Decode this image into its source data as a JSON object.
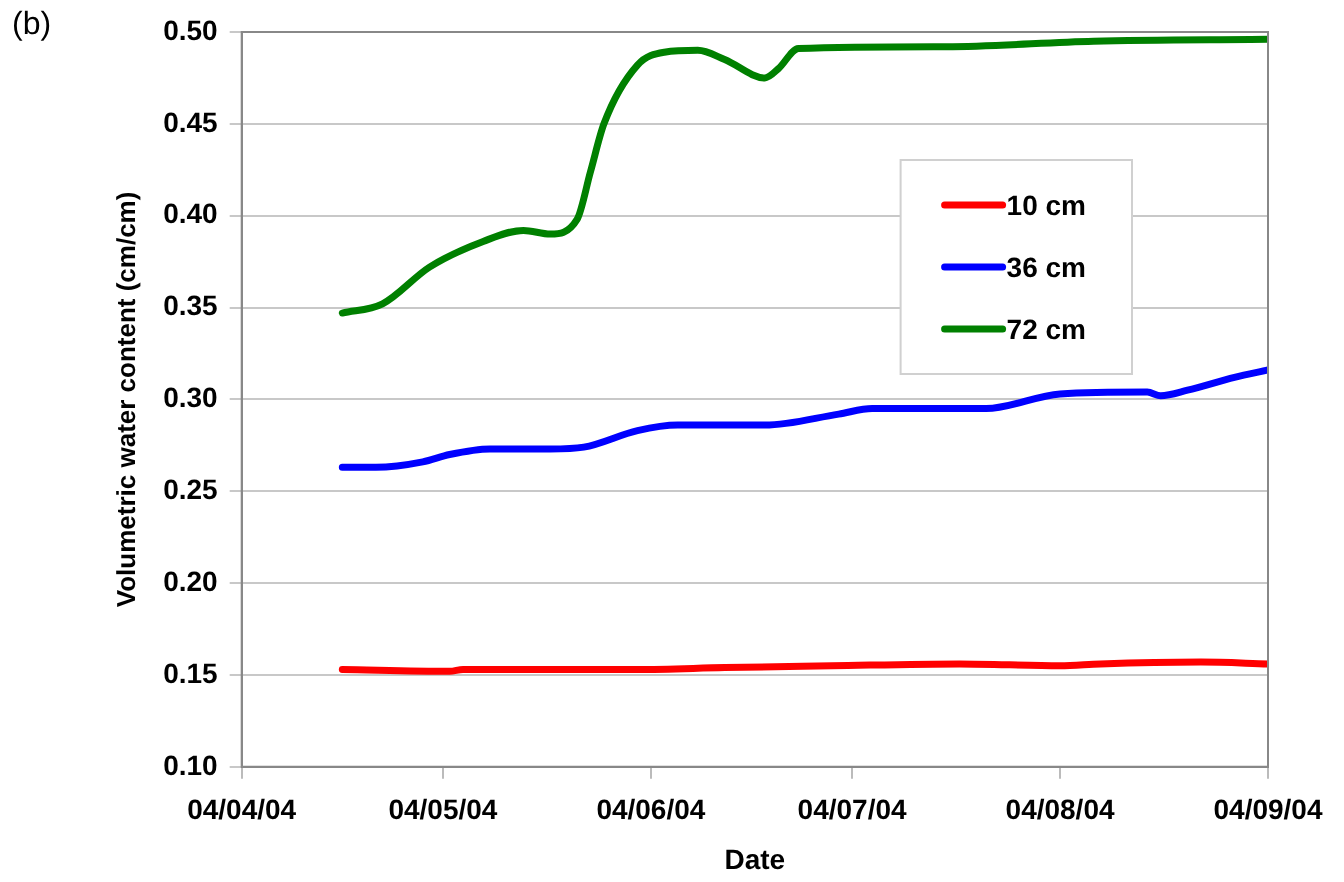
{
  "chart_data": {
    "type": "line",
    "xlabel": "Date",
    "ylabel": "Volumetric water content (cm/cm)",
    "annotations": [
      "(b)"
    ],
    "xlim": [
      "--04-04",
      "--09-04"
    ],
    "xticks": [
      {
        "value": "--04-04",
        "label": "04/04/04"
      },
      {
        "value": "--05-04",
        "label": "04/05/04"
      },
      {
        "value": "--06-04",
        "label": "04/06/04"
      },
      {
        "value": "--07-04",
        "label": "04/07/04"
      },
      {
        "value": "--08-04",
        "label": "04/08/04"
      },
      {
        "value": "--09-04",
        "label": "04/09/04"
      }
    ],
    "ylim": [
      0.1,
      0.5
    ],
    "yticks": [
      {
        "value": 0.1,
        "label": "0.10"
      },
      {
        "value": 0.15,
        "label": "0.15"
      },
      {
        "value": 0.2,
        "label": "0.20"
      },
      {
        "value": 0.25,
        "label": "0.25"
      },
      {
        "value": 0.3,
        "label": "0.30"
      },
      {
        "value": 0.35,
        "label": "0.35"
      },
      {
        "value": 0.4,
        "label": "0.40"
      },
      {
        "value": 0.45,
        "label": "0.45"
      },
      {
        "value": 0.5,
        "label": "0.50"
      }
    ],
    "grid": "y",
    "legend": "top right",
    "marker": "none",
    "line_style": "solid",
    "series": [
      {
        "name": "10 cm",
        "color": "#ff0000",
        "x": [
          "--04-19",
          "--05-05",
          "--05-07",
          "--06-02",
          "--06-15",
          "--07-01",
          "--07-20",
          "--08-04",
          "--08-10",
          "--08-25",
          "--09-04"
        ],
        "values": [
          0.153,
          0.152,
          0.153,
          0.153,
          0.154,
          0.155,
          0.156,
          0.155,
          0.156,
          0.157,
          0.156
        ]
      },
      {
        "name": "36 cm",
        "color": "#0000ff",
        "x": [
          "--04-19",
          "--04-24",
          "--05-01",
          "--05-05",
          "--05-11",
          "--05-20",
          "--05-25",
          "--06-02",
          "--06-08",
          "--06-21",
          "--07-02",
          "--07-07",
          "--07-24",
          "--08-04",
          "--08-17",
          "--08-19",
          "--08-23",
          "--08-30",
          "--09-04"
        ],
        "values": [
          0.263,
          0.263,
          0.266,
          0.27,
          0.273,
          0.273,
          0.274,
          0.283,
          0.286,
          0.286,
          0.292,
          0.295,
          0.295,
          0.303,
          0.304,
          0.302,
          0.305,
          0.312,
          0.316
        ]
      },
      {
        "name": "72 cm",
        "color": "#008000",
        "x": [
          "--04-19",
          "--04-25",
          "--05-02",
          "--05-10",
          "--05-16",
          "--05-20",
          "--05-24",
          "--05-26",
          "--05-28",
          "--06-02",
          "--06-06",
          "--06-11",
          "--06-15",
          "--06-21",
          "--06-23",
          "--06-26",
          "--07-18",
          "--08-09",
          "--09-04"
        ],
        "values": [
          0.347,
          0.352,
          0.372,
          0.386,
          0.392,
          0.39,
          0.398,
          0.424,
          0.45,
          0.482,
          0.489,
          0.49,
          0.485,
          0.475,
          0.48,
          0.491,
          0.492,
          0.495,
          0.496
        ]
      }
    ]
  }
}
